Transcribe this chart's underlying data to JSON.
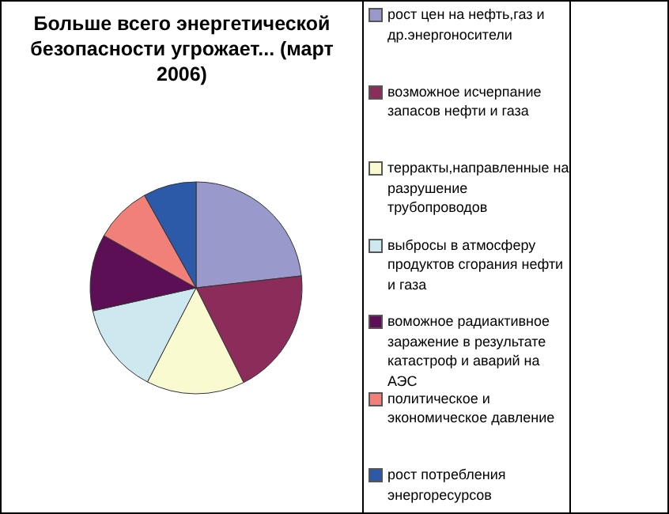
{
  "chart_data": {
    "type": "pie",
    "title": "Больше всего энергетической безопасности угрожает... (март 2006)",
    "categories": [
      "рост цен на нефть,газ и др.энергоносители",
      "возможное исчерпание запасов нефти и газа",
      "терракты,направленные на разрушение трубопроводов",
      "выбросы в атмосферу продуктов сгорания нефти и газа",
      "воможное радиактивное заражение в результате катастроф и аварий на АЭС",
      "политическое и экономическое давление",
      "рост потребления энергоресурсов"
    ],
    "values": [
      23.2,
      19.4,
      15,
      13.9,
      11.7,
      8.7,
      8.1
    ],
    "colors": [
      "#9999cc",
      "#8b2c5a",
      "#fafad0",
      "#cde8ee",
      "#5c0f55",
      "#f08078",
      "#2c5aa8"
    ],
    "legend": "right"
  }
}
